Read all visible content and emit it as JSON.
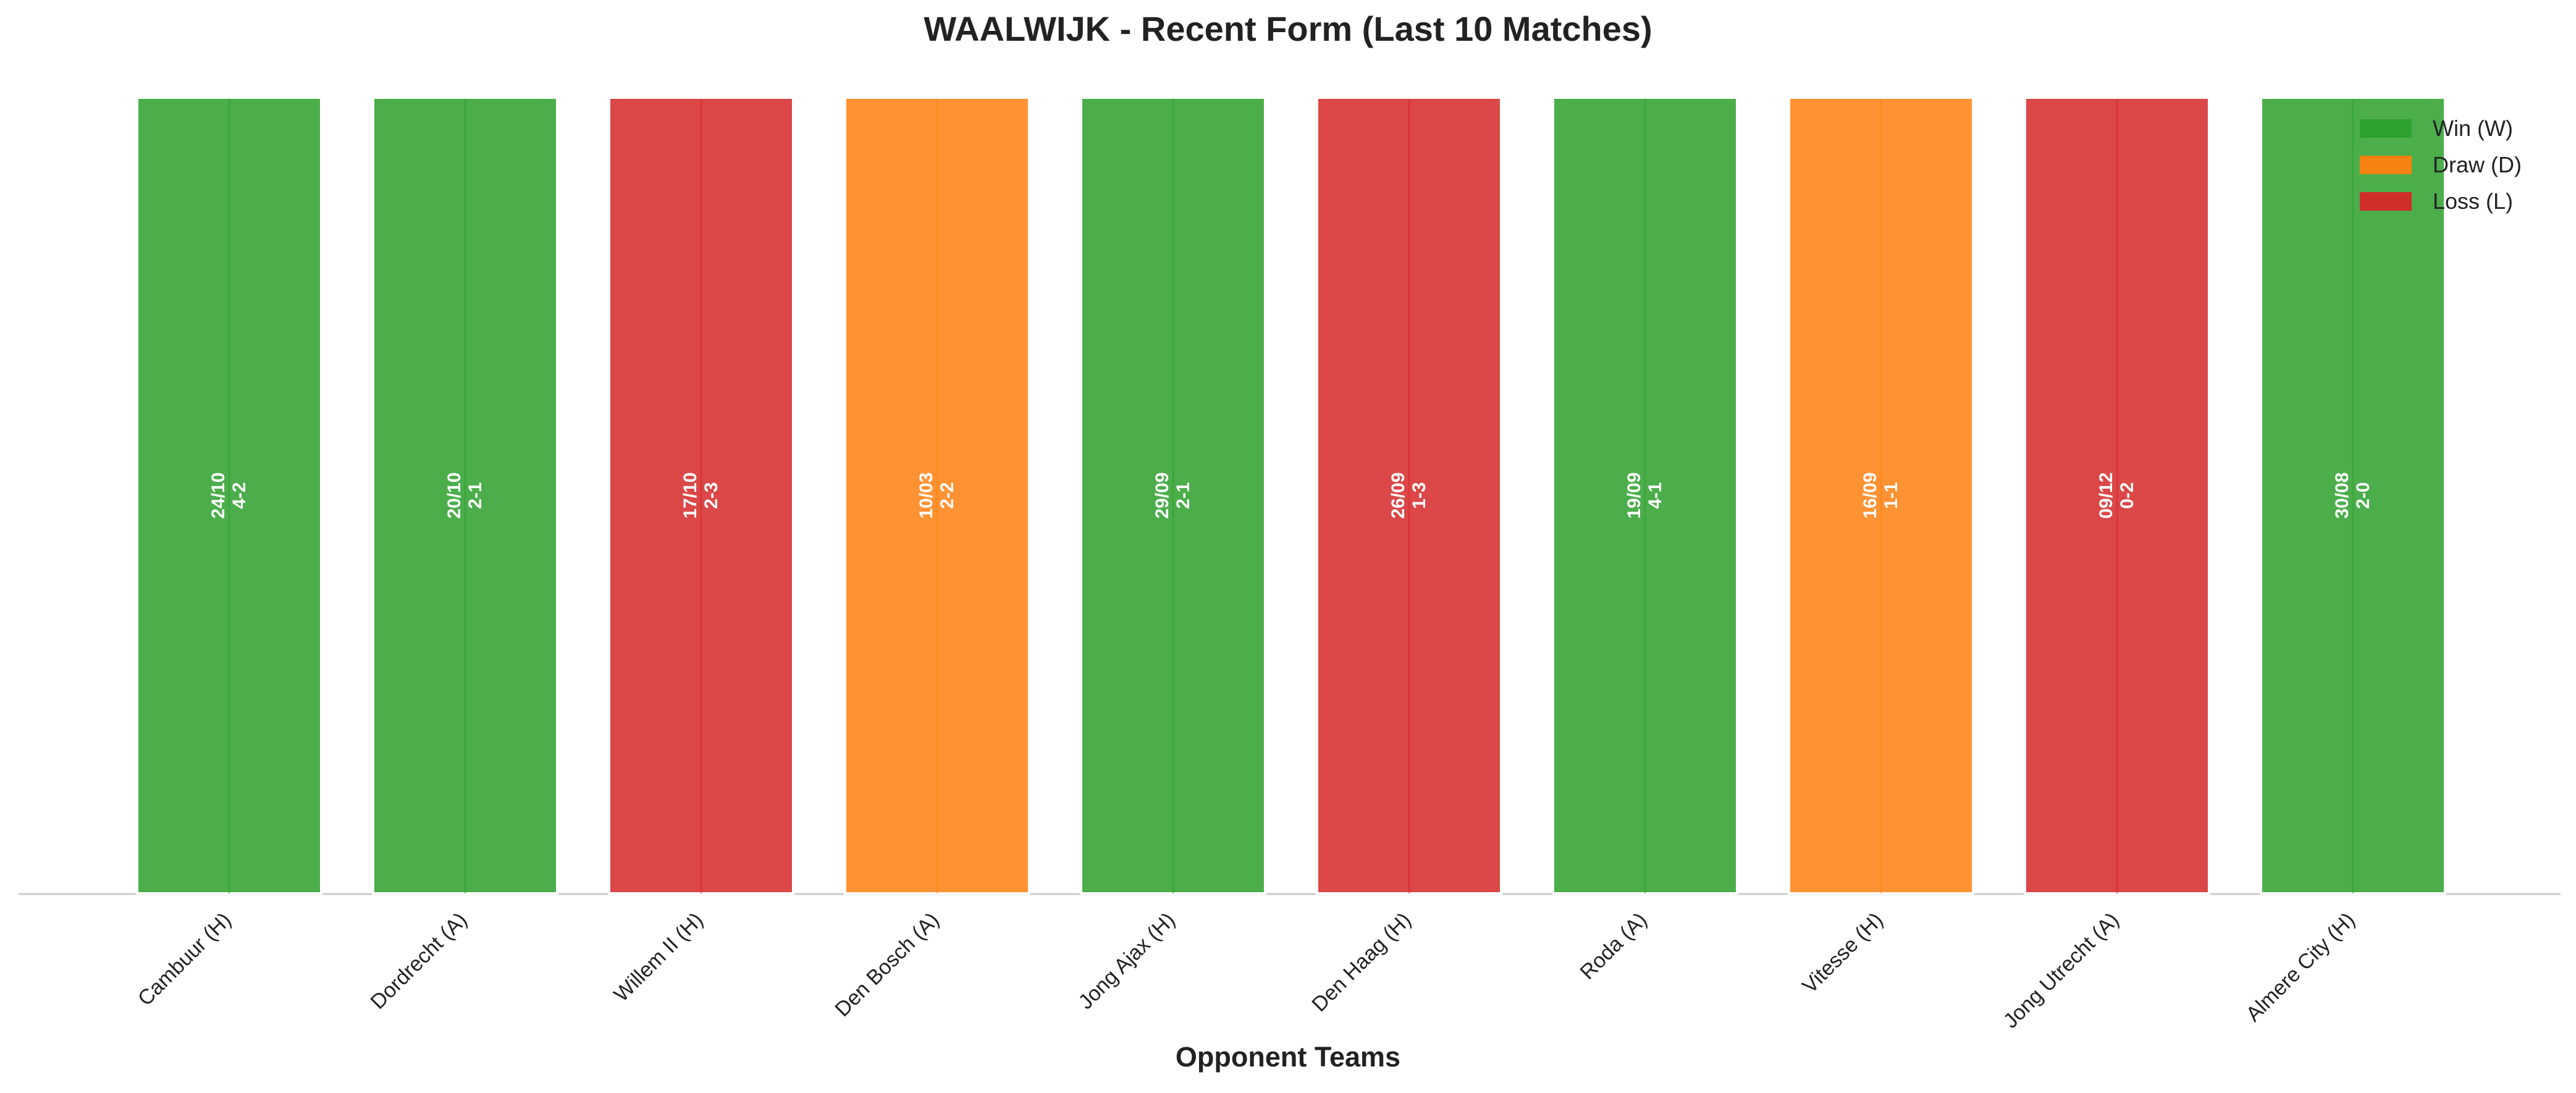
{
  "chart_data": {
    "type": "bar",
    "title": "WAALWIJK - Recent Form (Last 10 Matches)",
    "xlabel": "Opponent Teams",
    "ylabel": "",
    "grid": false,
    "legend_position": "top-right",
    "categories": [
      "Cambuur (H)",
      "Dordrecht (A)",
      "Willem II (H)",
      "Den Bosch (A)",
      "Jong Ajax (H)",
      "Den Haag (H)",
      "Roda (A)",
      "Vitesse (H)",
      "Jong Utrecht (A)",
      "Almere City (H)"
    ],
    "values": [
      1,
      1,
      1,
      1,
      1,
      1,
      1,
      1,
      1,
      1
    ],
    "ylim": [
      0,
      1
    ],
    "results": [
      "W",
      "W",
      "L",
      "D",
      "W",
      "L",
      "W",
      "D",
      "L",
      "W"
    ],
    "dates": [
      "24/10",
      "20/10",
      "17/10",
      "10/03",
      "29/09",
      "26/09",
      "19/09",
      "16/09",
      "09/12",
      "30/08"
    ],
    "scores": [
      "4-2",
      "2-1",
      "2-3",
      "2-2",
      "2-1",
      "1-3",
      "4-1",
      "1-1",
      "0-2",
      "2-0"
    ],
    "legend": [
      {
        "key": "W",
        "label": "Win (W)",
        "color": "#2ca02c"
      },
      {
        "key": "D",
        "label": "Draw (D)",
        "color": "#ff7f0e"
      },
      {
        "key": "L",
        "label": "Loss (L)",
        "color": "#d62728"
      }
    ]
  }
}
